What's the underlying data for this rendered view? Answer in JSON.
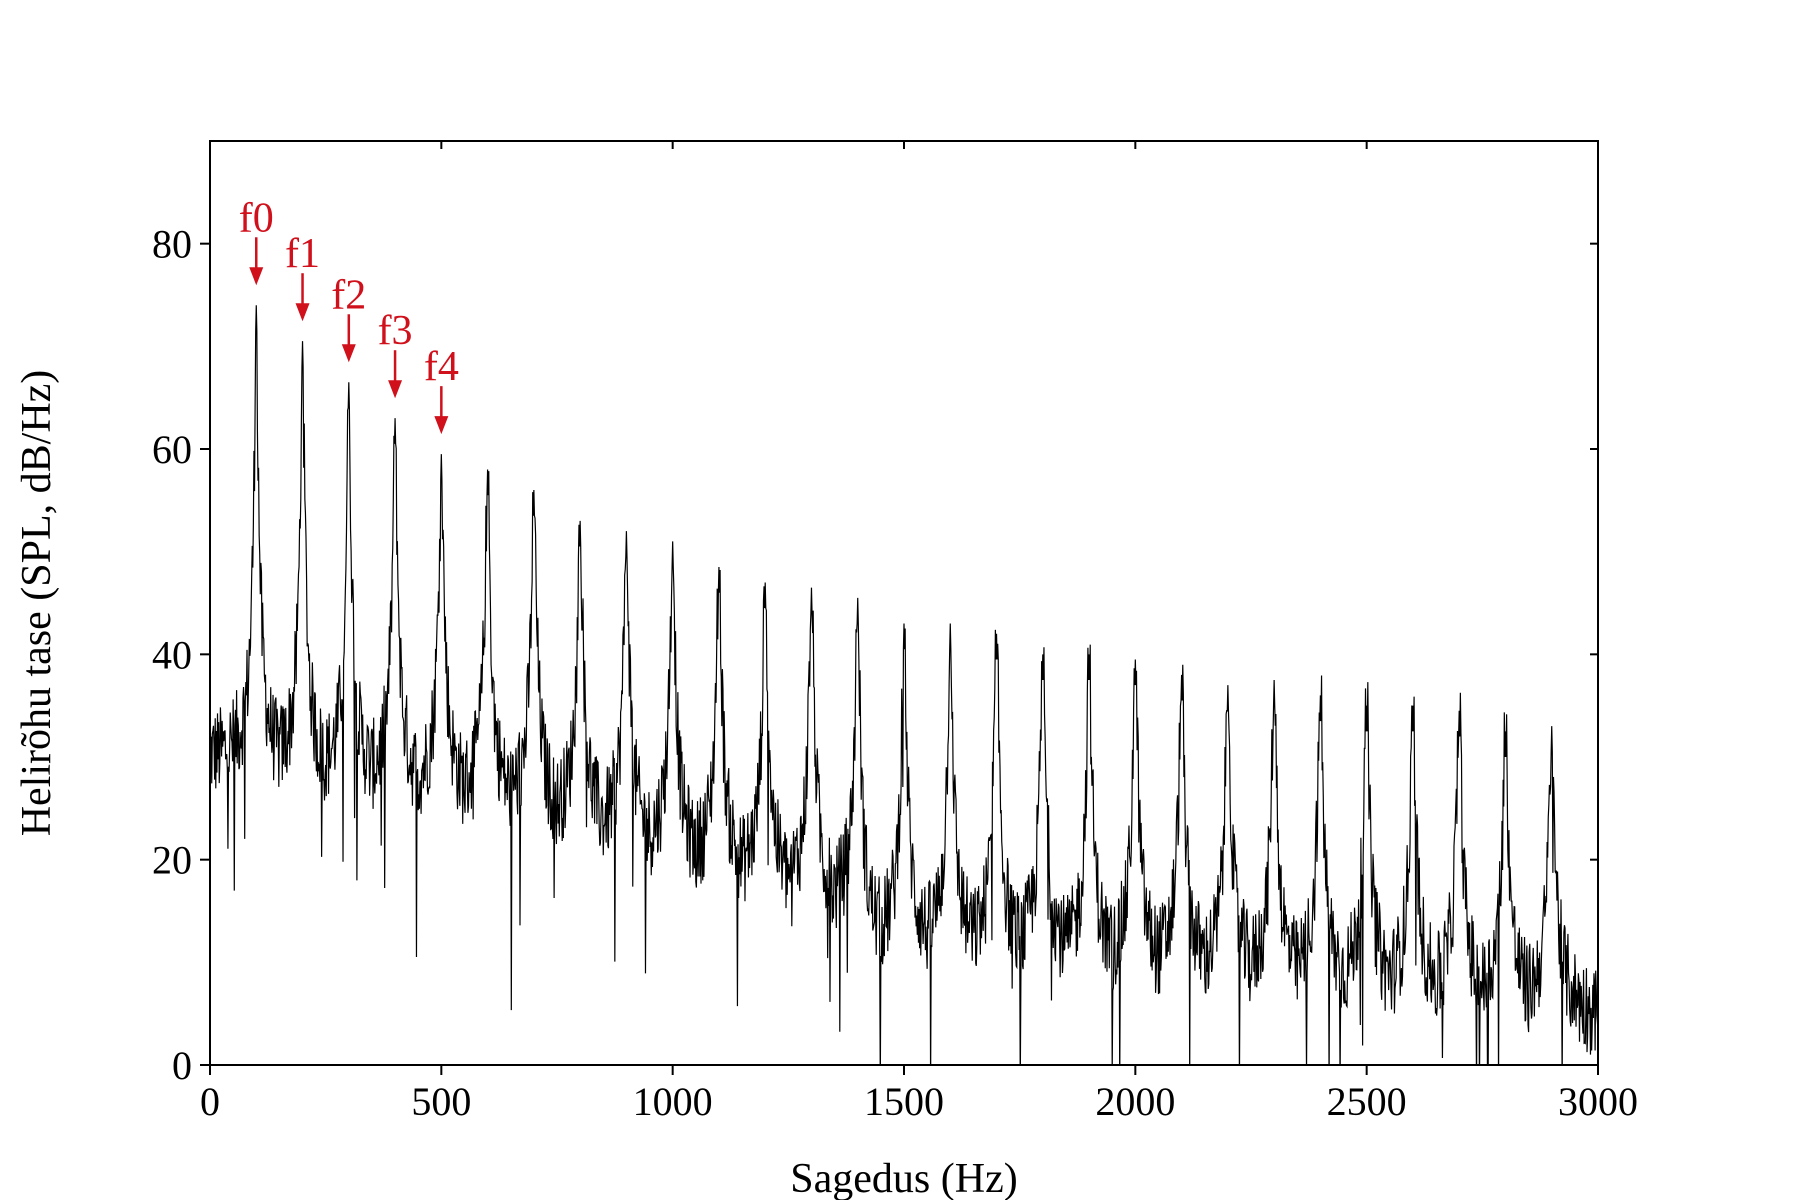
{
  "chart_data": {
    "type": "line",
    "title": "",
    "xlabel": "Sagedus (Hz)",
    "ylabel": "Helirõhu tase (SPL, dB/Hz)",
    "xlim": [
      0,
      3000
    ],
    "ylim": [
      0,
      90
    ],
    "x_ticks": [
      0,
      500,
      1000,
      1500,
      2000,
      2500,
      3000
    ],
    "x_tick_labels": [
      "0",
      "500",
      "1000",
      "1500",
      "2000",
      "2500",
      "3000"
    ],
    "y_ticks": [
      0,
      20,
      40,
      60,
      80
    ],
    "y_tick_labels": [
      "0",
      "20",
      "40",
      "60",
      "80"
    ],
    "grid": false,
    "legend": "none",
    "line_color": "#000000",
    "annotation_color": "#d0101b",
    "series": [
      {
        "harmonic_frequencies_hz": [
          100,
          200,
          300,
          400,
          500,
          600,
          700,
          800,
          900,
          1000,
          1100,
          1200,
          1300,
          1400,
          1500,
          1600,
          1700,
          1800,
          1900,
          2000,
          2100,
          2200,
          2300,
          2400,
          2500,
          2600,
          2700,
          2800,
          2900
        ],
        "harmonic_peaks_db": [
          74,
          70.5,
          66.5,
          63,
          59.5,
          58,
          56,
          53,
          52,
          51,
          48.5,
          47,
          46.5,
          45.5,
          43,
          43,
          42,
          40,
          40,
          39.5,
          38,
          37,
          37.5,
          36,
          35,
          35,
          34.5,
          32.5,
          33
        ]
      }
    ],
    "annotations": [
      {
        "label": "f0",
        "x": 100,
        "y": 74
      },
      {
        "label": "f1",
        "x": 200,
        "y": 70.5
      },
      {
        "label": "f2",
        "x": 300,
        "y": 66.5
      },
      {
        "label": "f3",
        "x": 400,
        "y": 63
      },
      {
        "label": "f4",
        "x": 500,
        "y": 59.5
      }
    ]
  }
}
